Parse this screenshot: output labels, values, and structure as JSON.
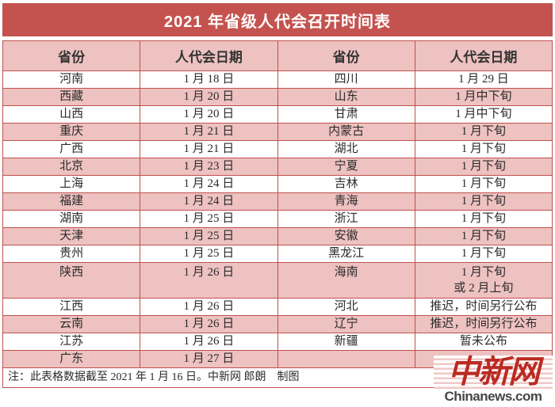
{
  "chart_data": {
    "type": "table",
    "title": "2021 年省级人代会召开时间表",
    "columns": [
      "省份",
      "人代会日期",
      "省份",
      "人代会日期"
    ],
    "rows": [
      {
        "cells": [
          "河南",
          "1 月 18 日",
          "四川",
          "1 月 29 日"
        ],
        "shade": false,
        "tall": false
      },
      {
        "cells": [
          "西藏",
          "1 月 20 日",
          "山东",
          "1 月中下旬"
        ],
        "shade": true,
        "tall": false
      },
      {
        "cells": [
          "山西",
          "1 月 20 日",
          "甘肃",
          "1 月中下旬"
        ],
        "shade": false,
        "tall": false
      },
      {
        "cells": [
          "重庆",
          "1 月 21 日",
          "内蒙古",
          "1 月下旬"
        ],
        "shade": true,
        "tall": false
      },
      {
        "cells": [
          "广西",
          "1 月 21 日",
          "湖北",
          "1 月下旬"
        ],
        "shade": false,
        "tall": false
      },
      {
        "cells": [
          "北京",
          "1 月 23 日",
          "宁夏",
          "1 月下旬"
        ],
        "shade": true,
        "tall": false
      },
      {
        "cells": [
          "上海",
          "1 月 24 日",
          "吉林",
          "1 月下旬"
        ],
        "shade": false,
        "tall": false
      },
      {
        "cells": [
          "福建",
          "1 月 24 日",
          "青海",
          "1 月下旬"
        ],
        "shade": true,
        "tall": false
      },
      {
        "cells": [
          "湖南",
          "1 月 25 日",
          "浙江",
          "1 月下旬"
        ],
        "shade": false,
        "tall": false
      },
      {
        "cells": [
          "天津",
          "1 月 25 日",
          "安徽",
          "1 月下旬"
        ],
        "shade": true,
        "tall": false
      },
      {
        "cells": [
          "贵州",
          "1 月 25 日",
          "黑龙江",
          "1 月下旬"
        ],
        "shade": false,
        "tall": false
      },
      {
        "cells": [
          "陕西",
          "1 月 26 日",
          "海南",
          "1 月下旬\n或 2 月上旬"
        ],
        "shade": true,
        "tall": true
      },
      {
        "cells": [
          "江西",
          "1 月 26 日",
          "河北",
          "推迟，时间另行公布"
        ],
        "shade": false,
        "tall": false
      },
      {
        "cells": [
          "云南",
          "1 月 26 日",
          "辽宁",
          "推迟，时间另行公布"
        ],
        "shade": true,
        "tall": false
      },
      {
        "cells": [
          "江苏",
          "1 月 26 日",
          "新疆",
          "暂未公布"
        ],
        "shade": false,
        "tall": false
      },
      {
        "cells": [
          "广东",
          "1 月 27 日",
          "",
          ""
        ],
        "shade": true,
        "tall": false
      }
    ],
    "note": "注：此表格数据截至 2021 年 1 月 16 日。中新网 郎朗　制图"
  },
  "logo": {
    "cn": "中新网",
    "en": "Chinanews.com"
  },
  "colors": {
    "title_red": "#c4534f",
    "border_red": "#c0504d",
    "fill_pink": "#edc2c0",
    "logo_red": "#bb2a21",
    "text_dark": "#2b2b2b"
  }
}
